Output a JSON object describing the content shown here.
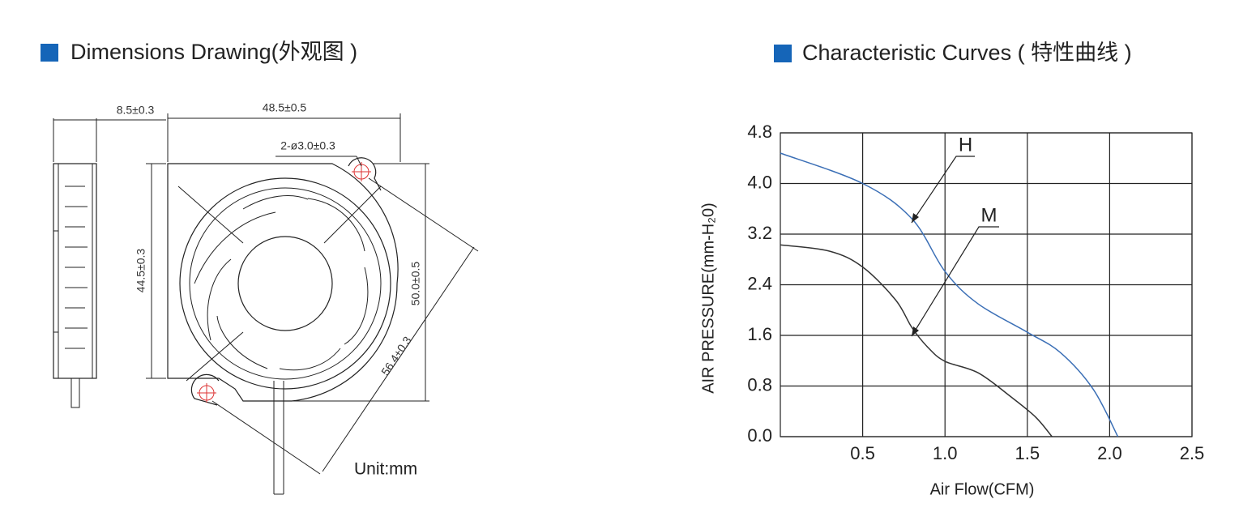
{
  "drawing": {
    "title": "Dimensions Drawing(外观图 )",
    "dims": {
      "thickness": "8.5±0.3",
      "width": "48.5±0.5",
      "holes": "2-ø3.0±0.3",
      "height": "44.5±0.3",
      "hole_pitch_v": "50.0±0.5",
      "hole_pitch_diag": "56.4±0.3"
    },
    "unit": "Unit:mm"
  },
  "chart_data": {
    "type": "line",
    "title": "Characteristic Curves ( 特性曲线 )",
    "x_label": "Air Flow(CFM)",
    "y_label": "AIR PRESSURE(mm-H₂0)",
    "xlim": [
      0,
      2.5
    ],
    "ylim": [
      0,
      4.8
    ],
    "xticks": [
      0.5,
      {
        "value": 1,
        "label": "1.0"
      },
      1.5,
      {
        "value": 2,
        "label": "2.0"
      },
      2.5
    ],
    "yticks": [
      {
        "value": 0,
        "label": "0.0"
      },
      0.8,
      1.6,
      2.4,
      3.2,
      {
        "value": 4,
        "label": "4.0"
      },
      4.8
    ],
    "grid": true,
    "series": [
      {
        "name": "H",
        "color": "#3b6fb6",
        "x": [
          0,
          0.5,
          0.8,
          1.0,
          1.2,
          1.5,
          1.7,
          1.9,
          2.05
        ],
        "values": [
          4.48,
          4.0,
          3.44,
          2.61,
          2.1,
          1.65,
          1.33,
          0.75,
          0
        ]
      },
      {
        "name": "M",
        "color": "#333333",
        "x": [
          0,
          0.3,
          0.5,
          0.7,
          0.8,
          0.9,
          1.0,
          1.2,
          1.4,
          1.55,
          1.65
        ],
        "values": [
          3.03,
          2.93,
          2.68,
          2.16,
          1.72,
          1.4,
          1.19,
          1.01,
          0.63,
          0.31,
          0
        ]
      }
    ]
  }
}
